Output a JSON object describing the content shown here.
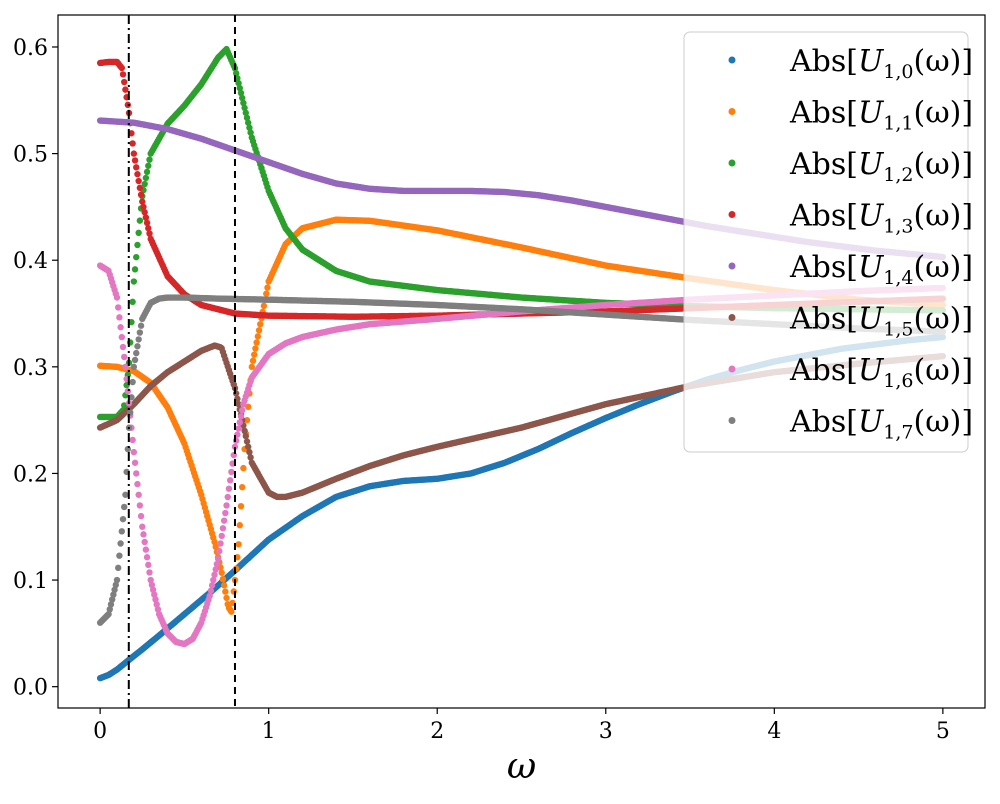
{
  "chart_data": {
    "type": "scatter",
    "title": "",
    "xlabel": "ω",
    "ylabel": "",
    "xlim": [
      -0.25,
      5.25
    ],
    "ylim": [
      -0.02,
      0.63
    ],
    "x_ticks": [
      0,
      1,
      2,
      3,
      4,
      5
    ],
    "x_tick_labels": [
      "0",
      "1",
      "2",
      "3",
      "4",
      "5"
    ],
    "y_ticks": [
      0.0,
      0.1,
      0.2,
      0.3,
      0.4,
      0.5,
      0.6
    ],
    "y_tick_labels": [
      "0.0",
      "0.1",
      "0.2",
      "0.3",
      "0.4",
      "0.5",
      "0.6"
    ],
    "grid": false,
    "legend_position": "top-right",
    "vertical_lines": [
      {
        "x": 0.17,
        "style": "dashdot",
        "color": "#000000"
      },
      {
        "x": 0.8,
        "style": "dashed",
        "color": "#000000"
      }
    ],
    "series": [
      {
        "name": "Abs[U1,0(ω)]",
        "label_base": "Abs[",
        "label_var": "U",
        "label_sub": "1,0",
        "label_tail": "(ω)]",
        "color": "#1f77b4",
        "x": [
          0,
          0.05,
          0.1,
          0.17,
          0.25,
          0.35,
          0.5,
          0.65,
          0.8,
          1.0,
          1.2,
          1.4,
          1.6,
          1.8,
          2.0,
          2.2,
          2.4,
          2.6,
          2.8,
          3.0,
          3.2,
          3.4,
          3.6,
          3.8,
          4.0,
          4.2,
          4.4,
          4.6,
          4.8,
          5.0
        ],
        "y": [
          0.008,
          0.011,
          0.016,
          0.025,
          0.035,
          0.048,
          0.068,
          0.088,
          0.109,
          0.138,
          0.16,
          0.178,
          0.188,
          0.193,
          0.195,
          0.2,
          0.21,
          0.223,
          0.238,
          0.252,
          0.265,
          0.277,
          0.288,
          0.297,
          0.305,
          0.311,
          0.317,
          0.321,
          0.325,
          0.328
        ]
      },
      {
        "name": "Abs[U1,1(ω)]",
        "label_base": "Abs[",
        "label_var": "U",
        "label_sub": "1,1",
        "label_tail": "(ω)]",
        "color": "#ff7f0e",
        "x": [
          0,
          0.1,
          0.2,
          0.3,
          0.4,
          0.5,
          0.6,
          0.68,
          0.72,
          0.76,
          0.78,
          0.82,
          0.86,
          0.9,
          1.0,
          1.1,
          1.2,
          1.4,
          1.6,
          2.0,
          2.5,
          3.0,
          3.5,
          4.0,
          4.5,
          5.0
        ],
        "y": [
          0.301,
          0.3,
          0.296,
          0.285,
          0.262,
          0.228,
          0.18,
          0.135,
          0.108,
          0.075,
          0.07,
          0.13,
          0.23,
          0.3,
          0.38,
          0.415,
          0.43,
          0.438,
          0.437,
          0.428,
          0.412,
          0.395,
          0.383,
          0.372,
          0.363,
          0.358
        ]
      },
      {
        "name": "Abs[U1,2(ω)]",
        "label_base": "Abs[",
        "label_var": "U",
        "label_sub": "1,2",
        "label_tail": "(ω)]",
        "color": "#2ca02c",
        "x": [
          0,
          0.1,
          0.14,
          0.17,
          0.2,
          0.25,
          0.3,
          0.4,
          0.5,
          0.6,
          0.7,
          0.75,
          0.8,
          0.9,
          1.0,
          1.1,
          1.2,
          1.4,
          1.6,
          2.0,
          2.5,
          3.0,
          3.5,
          4.0,
          4.5,
          5.0
        ],
        "y": [
          0.253,
          0.253,
          0.26,
          0.3,
          0.38,
          0.46,
          0.5,
          0.528,
          0.545,
          0.565,
          0.59,
          0.598,
          0.58,
          0.515,
          0.465,
          0.43,
          0.41,
          0.39,
          0.38,
          0.372,
          0.365,
          0.36,
          0.357,
          0.355,
          0.354,
          0.353
        ]
      },
      {
        "name": "Abs[U1,3(ω)]",
        "label_base": "Abs[",
        "label_var": "U",
        "label_sub": "1,3",
        "label_tail": "(ω)]",
        "color": "#d62728",
        "x": [
          0,
          0.05,
          0.1,
          0.13,
          0.17,
          0.2,
          0.25,
          0.3,
          0.4,
          0.5,
          0.6,
          0.8,
          1.0,
          1.5,
          2.0,
          2.5,
          3.0,
          3.5,
          4.0,
          4.5,
          5.0
        ],
        "y": [
          0.585,
          0.586,
          0.586,
          0.58,
          0.54,
          0.5,
          0.455,
          0.42,
          0.385,
          0.368,
          0.358,
          0.35,
          0.348,
          0.347,
          0.348,
          0.35,
          0.352,
          0.355,
          0.358,
          0.361,
          0.364
        ]
      },
      {
        "name": "Abs[U1,4(ω)]",
        "label_base": "Abs[",
        "label_var": "U",
        "label_sub": "1,4",
        "label_tail": "(ω)]",
        "color": "#9467bd",
        "x": [
          0,
          0.2,
          0.4,
          0.6,
          0.8,
          1.0,
          1.2,
          1.4,
          1.6,
          1.8,
          2.0,
          2.2,
          2.4,
          2.6,
          2.8,
          3.0,
          3.2,
          3.4,
          3.6,
          3.8,
          4.0,
          4.2,
          4.4,
          4.6,
          4.8,
          5.0
        ],
        "y": [
          0.531,
          0.529,
          0.523,
          0.514,
          0.503,
          0.492,
          0.481,
          0.472,
          0.467,
          0.465,
          0.465,
          0.465,
          0.464,
          0.461,
          0.456,
          0.45,
          0.444,
          0.438,
          0.432,
          0.427,
          0.422,
          0.417,
          0.413,
          0.409,
          0.406,
          0.403
        ]
      },
      {
        "name": "Abs[U1,5(ω)]",
        "label_base": "Abs[",
        "label_var": "U",
        "label_sub": "1,5",
        "label_tail": "(ω)]",
        "color": "#8c564b",
        "x": [
          0,
          0.1,
          0.2,
          0.3,
          0.4,
          0.5,
          0.6,
          0.68,
          0.72,
          0.8,
          0.9,
          1.0,
          1.05,
          1.1,
          1.2,
          1.4,
          1.6,
          1.8,
          2.0,
          2.5,
          3.0,
          3.5,
          4.0,
          4.5,
          5.0
        ],
        "y": [
          0.243,
          0.25,
          0.265,
          0.282,
          0.295,
          0.305,
          0.315,
          0.32,
          0.318,
          0.28,
          0.21,
          0.182,
          0.178,
          0.178,
          0.182,
          0.195,
          0.207,
          0.217,
          0.225,
          0.243,
          0.265,
          0.282,
          0.295,
          0.303,
          0.31
        ]
      },
      {
        "name": "Abs[U1,6(ω)]",
        "label_base": "Abs[",
        "label_var": "U",
        "label_sub": "1,6",
        "label_tail": "(ω)]",
        "color": "#e377c2",
        "x": [
          0,
          0.05,
          0.1,
          0.15,
          0.2,
          0.25,
          0.3,
          0.35,
          0.4,
          0.45,
          0.5,
          0.55,
          0.6,
          0.65,
          0.7,
          0.75,
          0.8,
          0.85,
          0.9,
          1.0,
          1.1,
          1.2,
          1.4,
          1.6,
          2.0,
          2.5,
          3.0,
          3.5,
          4.0,
          4.5,
          5.0
        ],
        "y": [
          0.395,
          0.39,
          0.365,
          0.3,
          0.22,
          0.15,
          0.1,
          0.068,
          0.05,
          0.042,
          0.04,
          0.045,
          0.06,
          0.085,
          0.12,
          0.17,
          0.225,
          0.265,
          0.29,
          0.312,
          0.322,
          0.328,
          0.335,
          0.34,
          0.345,
          0.352,
          0.358,
          0.363,
          0.367,
          0.371,
          0.374
        ]
      },
      {
        "name": "Abs[U1,7(ω)]",
        "label_base": "Abs[",
        "label_var": "U",
        "label_sub": "1,7",
        "label_tail": "(ω)]",
        "color": "#7f7f7f",
        "x": [
          0,
          0.05,
          0.1,
          0.15,
          0.17,
          0.2,
          0.25,
          0.3,
          0.35,
          0.4,
          0.5,
          0.7,
          1.0,
          1.5,
          2.0,
          2.5,
          3.0,
          3.5,
          4.0,
          4.5,
          5.0
        ],
        "y": [
          0.06,
          0.068,
          0.1,
          0.18,
          0.24,
          0.3,
          0.345,
          0.36,
          0.364,
          0.365,
          0.365,
          0.364,
          0.363,
          0.361,
          0.358,
          0.354,
          0.349,
          0.344,
          0.34,
          0.336,
          0.333
        ]
      }
    ]
  }
}
